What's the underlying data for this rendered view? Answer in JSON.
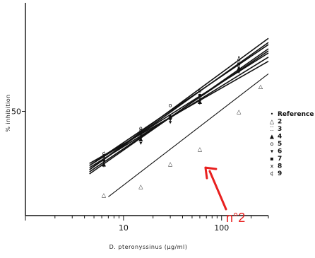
{
  "chart_data": {
    "type": "line",
    "xlabel": "D. pteronyssinus (µg/ml)",
    "ylabel": "% inhibition",
    "xscale": "log",
    "xlim": [
      1,
      300
    ],
    "ylim": [
      0,
      100
    ],
    "x_tick_labels": [
      "10",
      "100"
    ],
    "x_ticks": [
      10,
      100
    ],
    "y_tick_labels": [
      "50"
    ],
    "y_ticks": [
      50
    ],
    "grid": false,
    "legend_position": "right",
    "legend": [
      {
        "label": "Reference",
        "symbol": "•"
      },
      {
        "label": "2",
        "symbol": "△"
      },
      {
        "label": "3",
        "symbol": "⁚⁚"
      },
      {
        "label": "4",
        "symbol": "▲"
      },
      {
        "label": "5",
        "symbol": "o"
      },
      {
        "label": "6",
        "symbol": "▾"
      },
      {
        "label": "7",
        "symbol": "▪"
      },
      {
        "label": "8",
        "symbol": "x"
      },
      {
        "label": "9",
        "symbol": "¢"
      }
    ],
    "series": [
      {
        "x": [
          4.5,
          300
        ],
        "y": [
          22,
          85
        ],
        "points": [
          [
            6.3,
            28
          ],
          [
            15,
            40
          ],
          [
            30,
            48
          ],
          [
            60,
            58
          ],
          [
            150,
            76
          ]
        ],
        "symbol": "•"
      },
      {
        "x": [
          7,
          300
        ],
        "y": [
          9,
          68
        ],
        "points": [
          [
            6.3,
            10
          ],
          [
            15,
            14
          ],
          [
            30,
            25
          ],
          [
            60,
            32
          ],
          [
            150,
            50
          ],
          [
            250,
            62
          ]
        ],
        "symbol": "△"
      },
      {
        "x": [
          4.5,
          300
        ],
        "y": [
          24,
          82
        ],
        "points": [
          [
            6.3,
            27
          ],
          [
            15,
            38
          ],
          [
            30,
            47
          ],
          [
            60,
            56
          ],
          [
            150,
            72
          ]
        ],
        "symbol": "⁚⁚"
      },
      {
        "x": [
          4.5,
          300
        ],
        "y": [
          20,
          80
        ],
        "points": [
          [
            6.3,
            25
          ],
          [
            15,
            37
          ],
          [
            30,
            48
          ],
          [
            60,
            55
          ],
          [
            150,
            71
          ]
        ],
        "symbol": "▲"
      },
      {
        "x": [
          4.5,
          300
        ],
        "y": [
          24,
          78
        ],
        "points": [
          [
            6.3,
            29
          ],
          [
            15,
            42
          ],
          [
            30,
            53
          ],
          [
            60,
            60
          ],
          [
            150,
            75
          ]
        ],
        "symbol": "o"
      },
      {
        "x": [
          4.5,
          300
        ],
        "y": [
          21,
          79
        ],
        "points": [
          [
            6.3,
            24
          ],
          [
            15,
            35
          ],
          [
            30,
            45
          ],
          [
            60,
            54
          ],
          [
            150,
            69
          ]
        ],
        "symbol": "▾"
      },
      {
        "x": [
          4.5,
          300
        ],
        "y": [
          22,
          83
        ],
        "points": [
          [
            6.3,
            27
          ],
          [
            15,
            40
          ],
          [
            30,
            47
          ],
          [
            60,
            58
          ],
          [
            150,
            73
          ]
        ],
        "symbol": "▪"
      },
      {
        "x": [
          4.5,
          300
        ],
        "y": [
          23,
          76
        ],
        "points": [
          [
            6.3,
            26
          ],
          [
            15,
            39
          ],
          [
            30,
            46
          ],
          [
            60,
            56
          ],
          [
            150,
            70
          ]
        ],
        "symbol": "x"
      },
      {
        "x": [
          4.5,
          300
        ],
        "y": [
          25,
          74
        ],
        "points": [
          [
            6.3,
            30
          ],
          [
            15,
            41
          ],
          [
            30,
            47
          ],
          [
            60,
            57
          ],
          [
            150,
            72
          ]
        ],
        "symbol": "¢"
      }
    ],
    "annotation": {
      "text": "n°2",
      "color": "#e8201f",
      "target": [
        60,
        22
      ]
    }
  }
}
